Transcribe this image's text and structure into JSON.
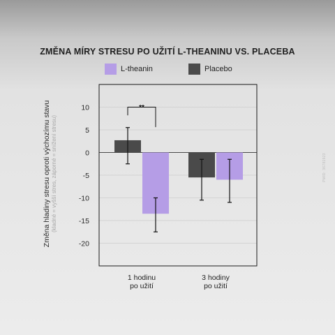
{
  "chart_data": {
    "type": "bar",
    "title": "ZMĚNA MÍRY STRESU PO UŽITÍ L-THEANINU VS. PLACEBA",
    "ylabel": "Změna hladiny stresu oproti výchozímu stavu",
    "ylabel_note": "(kladné = vyšší stres, záporné = snížení stresu)",
    "categories": [
      [
        "1 hodinu",
        "po užití"
      ],
      [
        "3 hodiny",
        "po užití"
      ]
    ],
    "ylim": [
      -25,
      15
    ],
    "yticks": [
      10,
      5,
      0,
      -5,
      -10,
      -15,
      -20
    ],
    "grid": true,
    "legend_position": "top",
    "series": [
      {
        "name": "L-theanin",
        "color": "#b59de6",
        "values": [
          -13.5,
          -6.0
        ],
        "err_low": [
          -17.5,
          -11.0
        ],
        "err_high": [
          -10.0,
          -1.5
        ]
      },
      {
        "name": "Placebo",
        "color": "#4a4a4a",
        "values": [
          2.7,
          -5.5
        ],
        "err_low": [
          -2.5,
          -10.5
        ],
        "err_high": [
          5.5,
          -1.5
        ]
      }
    ],
    "plot_order": [
      "Placebo",
      "L-theanin"
    ],
    "annotations": [
      {
        "text": "**",
        "category_index": 0,
        "y": 10
      }
    ]
  },
  "watermark": "PMID: 36781923"
}
